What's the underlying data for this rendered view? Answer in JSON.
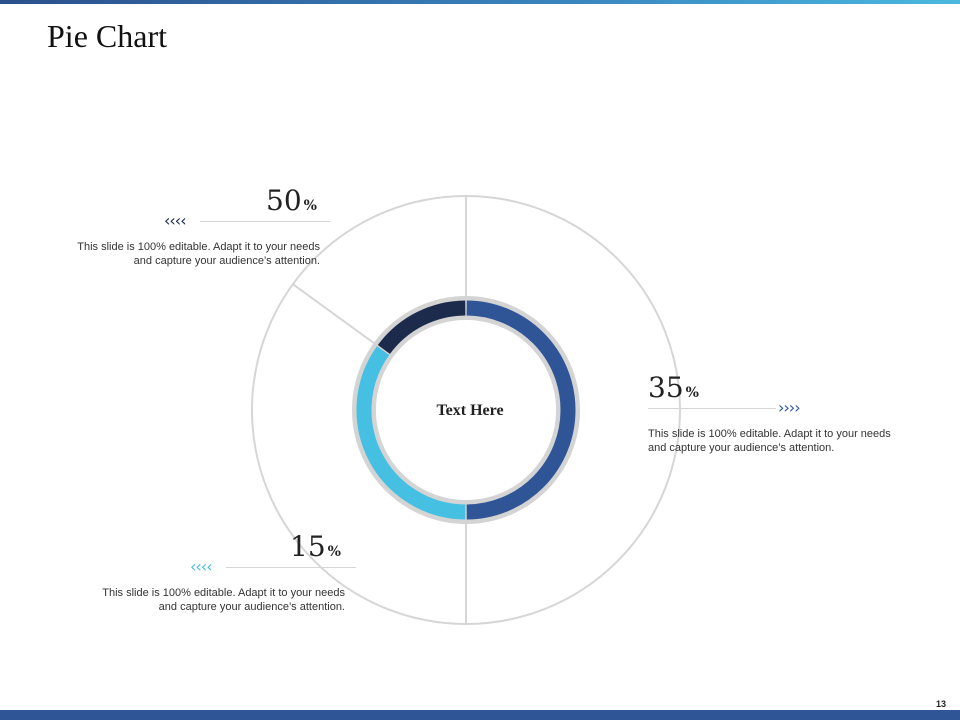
{
  "slide": {
    "title": "Pie Chart",
    "page_number": "13"
  },
  "center_label": "Text Here",
  "colors": {
    "dark_navy": "#1c2b4b",
    "blue": "#2f5597",
    "light_blue": "#45bfe2",
    "ring_grey": "#d4d4d4",
    "accent_bar": "#2f5597"
  },
  "callouts": [
    {
      "value": "50",
      "symbol": "%",
      "chevrons": "‹‹‹‹",
      "color": "#1c2b4b",
      "text": "This slide is 100% editable. Adapt it to your needs and capture your audience’s attention."
    },
    {
      "value": "35",
      "symbol": "%",
      "chevrons": "››››",
      "color": "#2f5597",
      "text": "This slide is 100% editable. Adapt it to your needs and capture your audience’s attention."
    },
    {
      "value": "15",
      "symbol": "%",
      "chevrons": "‹‹‹‹",
      "color": "#45bfe2",
      "text": "This slide is 100% editable. Adapt it to your needs and capture your audience’s attention."
    }
  ],
  "chart_data": {
    "type": "pie",
    "title": "",
    "slices": [
      {
        "value": 50,
        "label": "50%",
        "color": "#2f5597"
      },
      {
        "value": 35,
        "label": "35%",
        "color": "#45bfe2"
      },
      {
        "value": 15,
        "label": "15%",
        "color": "#1c2b4b"
      }
    ]
  }
}
